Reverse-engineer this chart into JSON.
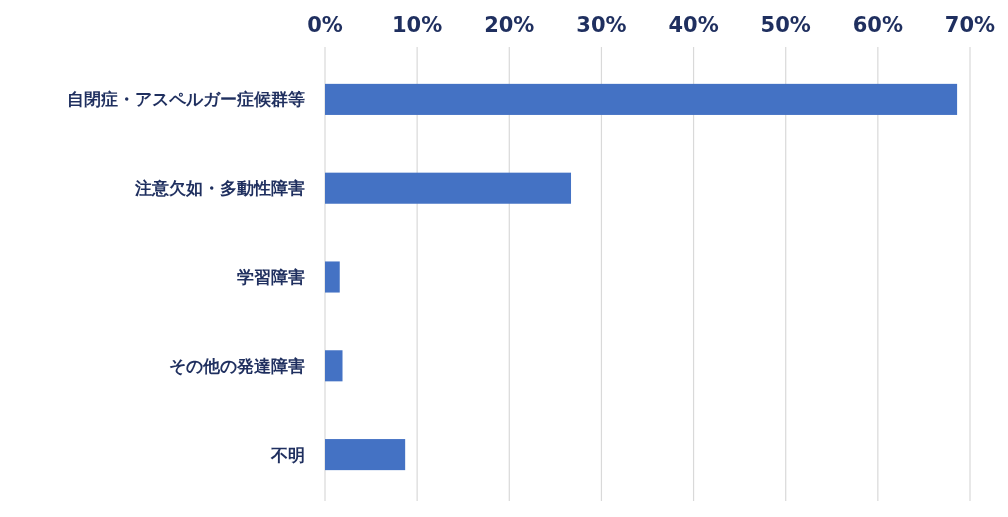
{
  "chart_data": {
    "type": "bar",
    "orientation": "horizontal",
    "categories": [
      "自閉症・アスペルガー症候群等",
      "注意欠如・多動性障害",
      "学習障害",
      "その他の発達障害",
      "不明"
    ],
    "values": [
      68.6,
      26.7,
      1.6,
      1.9,
      8.7
    ],
    "color": "#4472c4",
    "xlim": [
      0,
      70
    ],
    "xticks": [
      {
        "value": 0,
        "label": "0%"
      },
      {
        "value": 10,
        "label": "10%"
      },
      {
        "value": 20,
        "label": "20%"
      },
      {
        "value": 30,
        "label": "30%"
      },
      {
        "value": 40,
        "label": "40%"
      },
      {
        "value": 50,
        "label": "50%"
      },
      {
        "value": 60,
        "label": "60%"
      },
      {
        "value": 70,
        "label": "70%"
      }
    ],
    "grid": "x"
  }
}
